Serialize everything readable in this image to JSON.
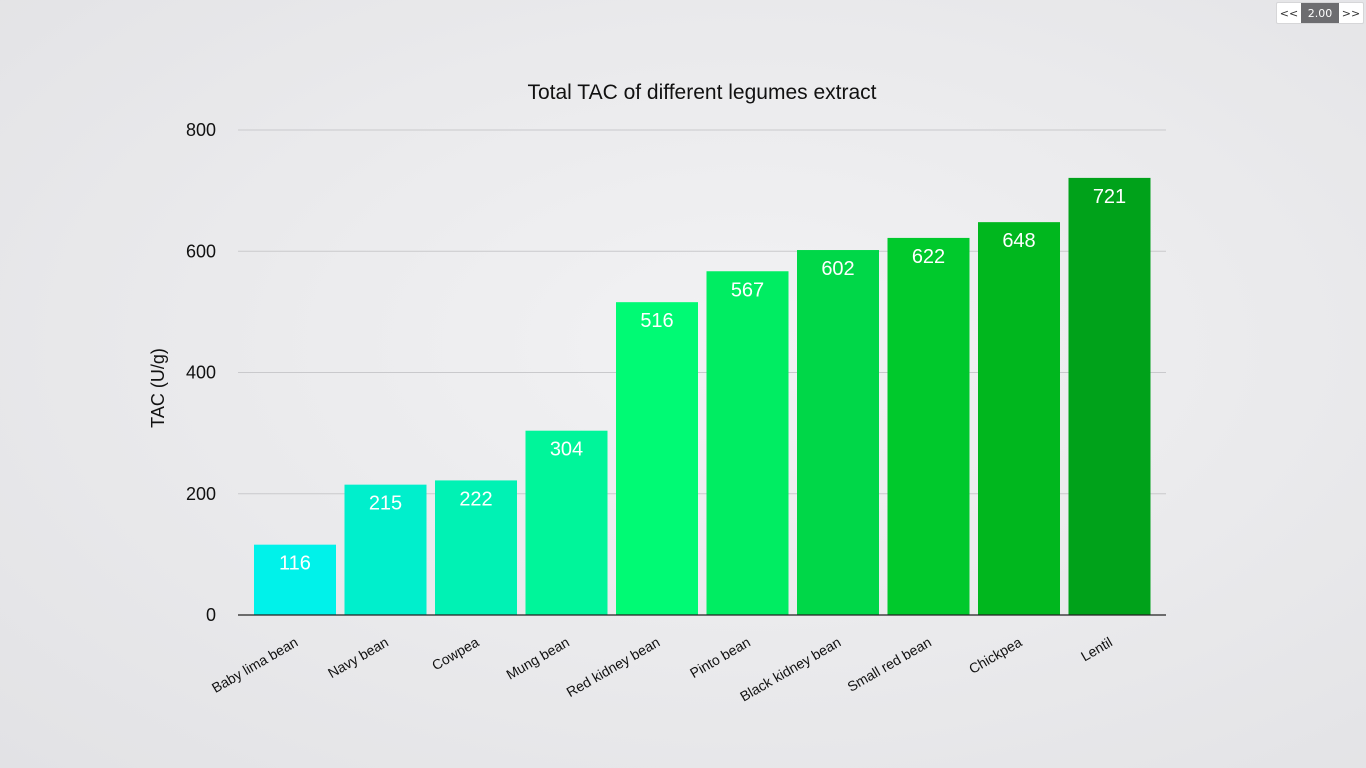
{
  "player": {
    "prev_label": "<<",
    "speed": "2.00",
    "next_label": ">>"
  },
  "chart_data": {
    "type": "bar",
    "title": "Total TAC of different legumes extract",
    "xlabel": "",
    "ylabel": "TAC (U/g)",
    "ylim": [
      0,
      800
    ],
    "yticks": [
      0,
      200,
      400,
      600,
      800
    ],
    "grid": true,
    "categories": [
      "Baby lima bean",
      "Navy bean",
      "Cowpea",
      "Mung bean",
      "Red kidney bean",
      "Pinto bean",
      "Black kidney bean",
      "Small red bean",
      "Chickpea",
      "Lentil"
    ],
    "values": [
      116,
      215,
      222,
      304,
      516,
      567,
      602,
      622,
      648,
      721
    ],
    "colors": [
      "#00f2ea",
      "#00efcc",
      "#00f2b4",
      "#00f59a",
      "#00fa74",
      "#00ed62",
      "#00d748",
      "#00c92c",
      "#00b71e",
      "#00a21a"
    ],
    "value_label_color": "#ffffff"
  }
}
